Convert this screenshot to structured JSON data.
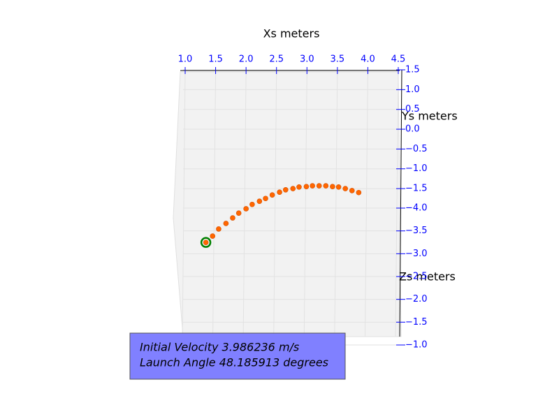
{
  "chart_data": {
    "type": "scatter",
    "x_label": "Xs meters",
    "y_label": "Ys meters",
    "y2_label": "Zs meters",
    "annotations": [
      "Initial Velocity 3.986236 m/s",
      "Launch Angle 48.185913 degrees"
    ],
    "x": [
      1.34,
      1.45,
      1.55,
      1.67,
      1.78,
      1.88,
      2.0,
      2.1,
      2.22,
      2.32,
      2.43,
      2.55,
      2.65,
      2.77,
      2.87,
      2.99,
      3.09,
      3.2,
      3.31,
      3.42,
      3.52,
      3.63,
      3.74,
      3.85
    ],
    "values": [
      -2.86,
      -2.7,
      -2.52,
      -2.38,
      -2.24,
      -2.12,
      -2.01,
      -1.9,
      -1.82,
      -1.75,
      -1.66,
      -1.59,
      -1.53,
      -1.5,
      -1.46,
      -1.45,
      -1.43,
      -1.43,
      -1.43,
      -1.45,
      -1.46,
      -1.5,
      -1.55,
      -1.6
    ],
    "color": "#ff6600",
    "highlight_color": "#008000",
    "tick_color": "#0000ff",
    "xlim": [
      1.0,
      4.5
    ],
    "xticks": [
      {
        "value": 1,
        "label": "1.0"
      },
      1.5,
      {
        "value": 2,
        "label": "2.0"
      },
      2.5,
      {
        "value": 3,
        "label": "3.0"
      },
      3.5,
      {
        "value": 4,
        "label": "4.0"
      },
      4.5
    ],
    "ylim": [
      1.5,
      -5.45
    ],
    "yticks": [
      1.5,
      {
        "value": 1,
        "label": "1.0"
      },
      0.5,
      {
        "value": 0,
        "label": "0.0"
      },
      {
        "value": -0.5,
        "label": "−0.5"
      },
      {
        "value": -1,
        "label": "−1.0"
      },
      {
        "value": -1.5,
        "label": "−1.5"
      }
    ],
    "y2lim": [
      -7.03,
      -1.0
    ],
    "y2ticks": [
      {
        "value": -4,
        "label": "−4.0"
      },
      {
        "value": -3.5,
        "label": "−3.5"
      },
      {
        "value": -3,
        "label": "−3.0"
      },
      {
        "value": -2.5,
        "label": "−2.5"
      },
      {
        "value": -2,
        "label": "−2.0"
      },
      {
        "value": -1.5,
        "label": "−1.5"
      },
      {
        "value": -1,
        "label": "−1.0"
      }
    ],
    "grid": true
  }
}
